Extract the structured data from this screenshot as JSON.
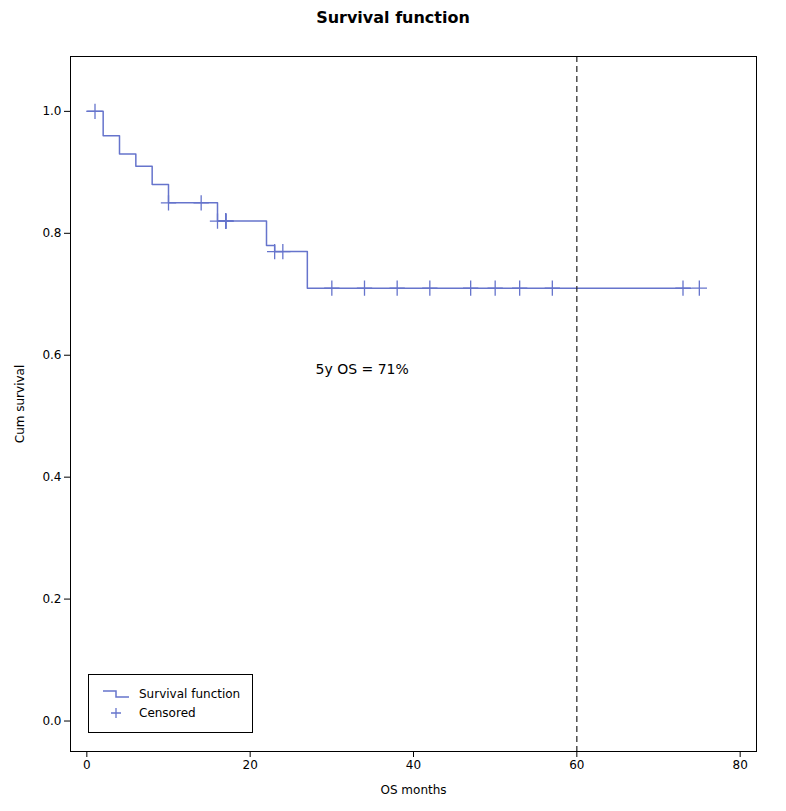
{
  "chart_data": {
    "type": "step",
    "title": "Survival function",
    "xlabel": "OS months",
    "ylabel": "Cum survival",
    "xlim": [
      -2,
      82
    ],
    "ylim": [
      -0.05,
      1.09
    ],
    "xticks": [
      0,
      20,
      40,
      60,
      80
    ],
    "yticks": [
      {
        "value": 0.0,
        "label": "0.0"
      },
      0.2,
      0.4,
      0.6,
      0.8,
      {
        "value": 1.0,
        "label": "1.0"
      }
    ],
    "legend": "lower left",
    "series": [
      {
        "name": "Survival function",
        "type": "step",
        "color": "#6674cc",
        "x": [
          0,
          2,
          4,
          6,
          8,
          10,
          12,
          16,
          17,
          22,
          23,
          27,
          30,
          74
        ],
        "values": [
          1.0,
          0.96,
          0.93,
          0.91,
          0.88,
          0.85,
          0.85,
          0.82,
          0.82,
          0.78,
          0.77,
          0.71,
          0.71,
          0.71
        ]
      },
      {
        "name": "Censored",
        "type": "scatter",
        "marker": "plus",
        "color": "#6674cc",
        "x": [
          1,
          10,
          14,
          16,
          17,
          17,
          17,
          17,
          17,
          17,
          23,
          24,
          30,
          34,
          38,
          42,
          47,
          50,
          53,
          57,
          73,
          75
        ],
        "values": [
          1.0,
          0.85,
          0.85,
          0.82,
          0.82,
          0.82,
          0.82,
          0.82,
          0.82,
          0.82,
          0.77,
          0.77,
          0.71,
          0.71,
          0.71,
          0.71,
          0.71,
          0.71,
          0.71,
          0.71,
          0.71,
          0.71
        ]
      }
    ],
    "vlines": [
      {
        "x": 60,
        "color": "#222222",
        "line_style": "dashed"
      }
    ],
    "annotations": [
      {
        "text": "5y OS = 71%",
        "x": 28,
        "y": 0.57
      }
    ]
  }
}
